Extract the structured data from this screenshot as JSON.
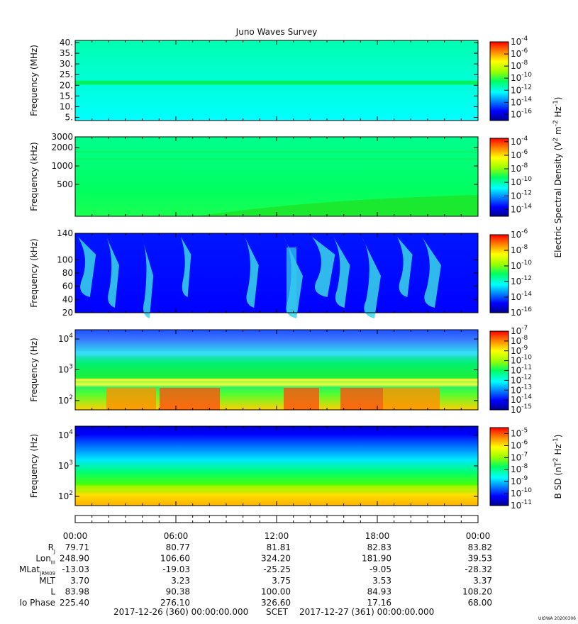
{
  "title": "Juno Waves Survey",
  "panels": [
    {
      "id": "p1",
      "ylabel": "Frequency (MHz)",
      "scale": "linear",
      "ylim": [
        3.5,
        41
      ],
      "yticks": [
        {
          "v": 40,
          "t": "40."
        },
        {
          "v": 35,
          "t": "35."
        },
        {
          "v": 30,
          "t": "30."
        },
        {
          "v": 25,
          "t": "25."
        },
        {
          "v": 20,
          "t": "20."
        },
        {
          "v": 15,
          "t": "15."
        },
        {
          "v": 10,
          "t": "10."
        },
        {
          "v": 5,
          "t": "5."
        }
      ],
      "colorbar": {
        "range": [
          -17,
          -4
        ],
        "exponents": [
          -4,
          -6,
          -8,
          -10,
          -12,
          -14,
          -16
        ]
      }
    },
    {
      "id": "p2",
      "ylabel": "Frequency (kHz)",
      "scale": "log",
      "ylim": [
        150,
        3000
      ],
      "yticks": [
        {
          "v": 3000,
          "t": "3000"
        },
        {
          "v": 2000,
          "t": "2000"
        },
        {
          "v": 1000,
          "t": "1000"
        },
        {
          "v": 500,
          "t": "500"
        }
      ],
      "colorbar": {
        "range": [
          -15,
          -3.5
        ],
        "exponents": [
          -4,
          -6,
          -8,
          -10,
          -12,
          -14
        ]
      }
    },
    {
      "id": "p3",
      "ylabel": "Frequency (kHz)",
      "scale": "linear",
      "ylim": [
        20,
        140
      ],
      "yticks": [
        {
          "v": 140,
          "t": "140"
        },
        {
          "v": 100,
          "t": "100"
        },
        {
          "v": 80,
          "t": "80"
        },
        {
          "v": 60,
          "t": "60"
        },
        {
          "v": 40,
          "t": "40"
        },
        {
          "v": 20,
          "t": "20"
        }
      ],
      "colorbar": {
        "range": [
          -16,
          -6
        ],
        "exponents": [
          -6,
          -8,
          -10,
          -12,
          -14,
          -16
        ]
      }
    },
    {
      "id": "p4",
      "ylabel": "Frequency (Hz)",
      "scale": "log",
      "ylim": [
        50,
        20000
      ],
      "yticks": [
        {
          "v": 10000,
          "t": "10",
          "e": "4"
        },
        {
          "v": 1000,
          "t": "10",
          "e": "3"
        },
        {
          "v": 100,
          "t": "10",
          "e": "2"
        }
      ],
      "colorbar": {
        "range": [
          -15,
          -7
        ],
        "exponents": [
          -7,
          -8,
          -9,
          -10,
          -11,
          -12,
          -13,
          -14,
          -15
        ]
      }
    },
    {
      "id": "p5",
      "ylabel": "Frequency (Hz)",
      "scale": "log",
      "ylim": [
        50,
        20000
      ],
      "yticks": [
        {
          "v": 10000,
          "t": "10",
          "e": "4"
        },
        {
          "v": 1000,
          "t": "10",
          "e": "3"
        },
        {
          "v": 100,
          "t": "10",
          "e": "2"
        }
      ],
      "colorbar": {
        "range": [
          -11,
          -4.5
        ],
        "exponents": [
          -5,
          -6,
          -7,
          -8,
          -9,
          -10,
          -11
        ]
      }
    }
  ],
  "colorbar_titles": {
    "electric": "Electric Spectral Density (V",
    "electric_sup1": "2",
    "electric_mid": " m",
    "electric_sup2": "-2",
    "electric_end": " Hz",
    "electric_sup3": "-1",
    "electric_close": ")",
    "magnetic": "B SD (nT",
    "magnetic_sup1": "2",
    "magnetic_mid": " Hz",
    "magnetic_sup2": "-1",
    "magnetic_close": ")",
    "power_base": "10"
  },
  "time_axis": {
    "labels": [
      "00:00",
      "06:00",
      "12:00",
      "18:00",
      "00:00"
    ]
  },
  "ephemeris": [
    {
      "label": "R",
      "sub": "J",
      "values": [
        "79.71",
        "80.77",
        "81.81",
        "82.83",
        "83.82"
      ]
    },
    {
      "label": "Lon",
      "sub": "III",
      "values": [
        "248.90",
        "106.60",
        "324.20",
        "181.90",
        "39.53"
      ]
    },
    {
      "label": "MLat",
      "sub": "JRM09",
      "values": [
        "-13.03",
        "-19.03",
        "-25.25",
        "-9.05",
        "-28.32"
      ]
    },
    {
      "label": "MLT",
      "sub": "",
      "values": [
        "3.70",
        "3.23",
        "3.75",
        "3.53",
        "3.37"
      ]
    },
    {
      "label": "L",
      "sub": "",
      "values": [
        "83.98",
        "90.38",
        "100.00",
        "84.93",
        "108.20"
      ]
    },
    {
      "label": "Io Phase",
      "sub": "",
      "values": [
        "225.40",
        "276.10",
        "326.60",
        "17.16",
        "68.00"
      ]
    }
  ],
  "footer": {
    "start": "2017-12-26 (360) 00:00:00.000",
    "scet": "SCET",
    "end": "2017-12-27 (361) 00:00:00.000"
  },
  "credit": "UIOWA 20200306",
  "chart_data": {
    "type": "heatmap",
    "title": "Juno Waves Survey",
    "x_range": [
      "2017-12-26 00:00",
      "2017-12-27 00:00"
    ],
    "x_ticks": [
      "00:00",
      "06:00",
      "12:00",
      "18:00",
      "00:00"
    ],
    "panels": [
      {
        "ylabel": "Frequency (MHz)",
        "y_range": [
          3.5,
          41
        ],
        "y_scale": "linear",
        "color_range_log10": [
          -17,
          -4
        ],
        "features": "background about 1e-12 with a bright band near 21 MHz (about 1e-11)"
      },
      {
        "ylabel": "Frequency (kHz)",
        "y_range": [
          150,
          3000
        ],
        "y_scale": "log",
        "color_range_log10": [
          -15,
          -3.5
        ],
        "features": "background about 1e-11, brighter lines near 1300 and 1700 kHz; enhanced emission below about 300 kHz increasing after 06:00"
      },
      {
        "ylabel": "Frequency (kHz)",
        "y_range": [
          20,
          140
        ],
        "y_scale": "linear",
        "color_range_log10": [
          -16,
          -6
        ],
        "features": "background about 1e-14.5; bursty emission near 00:30, 02:00, 05:00, 09:30, 12:30-13:30, 16:30, 19:00, 22:30"
      },
      {
        "ylabel": "Frequency (Hz)",
        "y_range": [
          50,
          20000
        ],
        "y_scale": "log",
        "color_range_log10": [
          -15,
          -7
        ],
        "features": "low 1e-13 above 3 kHz, green 1e-11 from 700 Hz to 3 kHz, line near 500 Hz, intense 1e-8 below 300 Hz around 05:00-09:00 and 15:00-18:00"
      },
      {
        "ylabel": "Frequency (Hz)",
        "y_range": [
          50,
          20000
        ],
        "y_scale": "log",
        "color_range_log10": [
          -11,
          -4.5
        ],
        "features": "about 1e-10.5 above 5 kHz rising to 1e-6.5 below 200 Hz"
      }
    ]
  }
}
